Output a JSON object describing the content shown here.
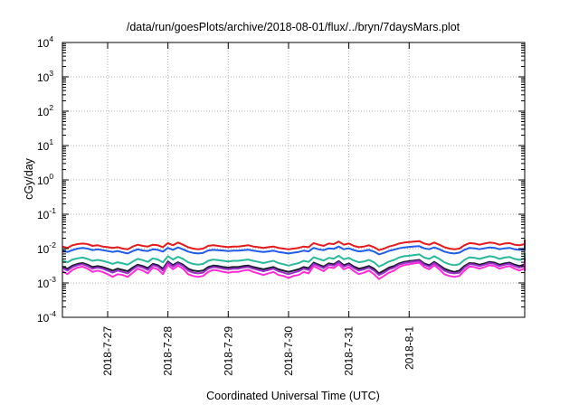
{
  "chart_data": {
    "type": "line",
    "title": "/data/run/goesPlots/archive/2018-08-01/flux/../bryn/7daysMars.plot",
    "xlabel": "Coordinated Universal Time (UTC)",
    "ylabel": "cGy/day",
    "yscale": "log",
    "ylim": [
      0.0001,
      10000
    ],
    "yticks": [
      {
        "base": "10",
        "exp": "-4"
      },
      {
        "base": "10",
        "exp": "-3"
      },
      {
        "base": "10",
        "exp": "-2"
      },
      {
        "base": "10",
        "exp": "-1"
      },
      {
        "base": "10",
        "exp": "0"
      },
      {
        "base": "10",
        "exp": "1"
      },
      {
        "base": "10",
        "exp": "2"
      },
      {
        "base": "10",
        "exp": "3"
      },
      {
        "base": "10",
        "exp": "4"
      }
    ],
    "xlim": [
      "2018-07-26 06:00",
      "2018-08-02 22:00"
    ],
    "xticks": [
      "2018-7-27",
      "2018-7-28",
      "2018-7-29",
      "2018-7-30",
      "2018-7-31",
      "2018-8-1"
    ],
    "grid": true,
    "legend": "none",
    "x_step_hours": 2,
    "series": [
      {
        "color": "#e41a1c",
        "values": [
          0.0115,
          0.0105,
          0.0125,
          0.0135,
          0.014,
          0.0135,
          0.012,
          0.0125,
          0.0115,
          0.011,
          0.0105,
          0.011,
          0.01,
          0.0095,
          0.0115,
          0.013,
          0.012,
          0.0115,
          0.013,
          0.0125,
          0.011,
          0.0145,
          0.0125,
          0.015,
          0.013,
          0.011,
          0.01,
          0.0095,
          0.01,
          0.012,
          0.0125,
          0.012,
          0.0115,
          0.011,
          0.0115,
          0.0115,
          0.012,
          0.0125,
          0.0115,
          0.011,
          0.0105,
          0.011,
          0.0115,
          0.0105,
          0.01,
          0.0095,
          0.01,
          0.0105,
          0.0115,
          0.011,
          0.0145,
          0.013,
          0.012,
          0.014,
          0.0135,
          0.016,
          0.013,
          0.014,
          0.012,
          0.011,
          0.0115,
          0.0125,
          0.011,
          0.009,
          0.01,
          0.0115,
          0.0125,
          0.014,
          0.015,
          0.0155,
          0.016,
          0.0165,
          0.014,
          0.013,
          0.015,
          0.013,
          0.011,
          0.01,
          0.0095,
          0.01,
          0.0125,
          0.0145,
          0.014,
          0.013,
          0.014,
          0.015,
          0.0145,
          0.013,
          0.014,
          0.0145,
          0.013,
          0.0125,
          0.0135,
          0.014,
          0.0135,
          0.013,
          0.0125,
          0.013,
          0.0145,
          0.0175,
          0.0165,
          0.017,
          0.0165,
          0.0155,
          0.014,
          0.015,
          0.017,
          0.016,
          0.0165,
          0.014,
          0.017,
          0.0165
        ]
      },
      {
        "color": "#1f5ce8",
        "values": [
          0.0085,
          0.008,
          0.009,
          0.01,
          0.0105,
          0.01,
          0.009,
          0.0095,
          0.009,
          0.0085,
          0.008,
          0.0085,
          0.0078,
          0.0072,
          0.0085,
          0.0095,
          0.0088,
          0.0085,
          0.0095,
          0.0092,
          0.0082,
          0.0105,
          0.0092,
          0.0108,
          0.0095,
          0.0082,
          0.0075,
          0.0072,
          0.0075,
          0.0088,
          0.0092,
          0.009,
          0.0088,
          0.0085,
          0.0087,
          0.0087,
          0.009,
          0.0093,
          0.0087,
          0.0083,
          0.008,
          0.0083,
          0.0087,
          0.008,
          0.0076,
          0.0072,
          0.0076,
          0.008,
          0.0087,
          0.0083,
          0.0105,
          0.0095,
          0.009,
          0.0102,
          0.0098,
          0.0115,
          0.0096,
          0.0102,
          0.009,
          0.0083,
          0.0086,
          0.0092,
          0.0082,
          0.0068,
          0.0075,
          0.0086,
          0.0093,
          0.0102,
          0.0108,
          0.0112,
          0.0116,
          0.0118,
          0.0102,
          0.0096,
          0.0108,
          0.0096,
          0.0082,
          0.0075,
          0.0072,
          0.0076,
          0.0092,
          0.0105,
          0.0102,
          0.0096,
          0.0102,
          0.0108,
          0.0105,
          0.0096,
          0.0102,
          0.0105,
          0.0096,
          0.0092,
          0.0099,
          0.0102,
          0.0099,
          0.0096,
          0.0092,
          0.0096,
          0.0105,
          0.0125,
          0.0118,
          0.0122,
          0.0118,
          0.0112,
          0.0102,
          0.0108,
          0.0122,
          0.0115,
          0.0118,
          0.0102,
          0.0122,
          0.0118
        ]
      },
      {
        "color": "#2ab89a",
        "values": [
          0.0045,
          0.004,
          0.0048,
          0.0052,
          0.0055,
          0.005,
          0.0044,
          0.0047,
          0.0044,
          0.004,
          0.0036,
          0.004,
          0.0037,
          0.0034,
          0.0042,
          0.005,
          0.0046,
          0.0041,
          0.0052,
          0.0048,
          0.004,
          0.006,
          0.0048,
          0.0058,
          0.005,
          0.004,
          0.0036,
          0.0034,
          0.0036,
          0.0044,
          0.0048,
          0.0046,
          0.0044,
          0.0042,
          0.0044,
          0.0044,
          0.0046,
          0.0048,
          0.0044,
          0.0041,
          0.0038,
          0.0041,
          0.0044,
          0.0038,
          0.0035,
          0.0032,
          0.0035,
          0.0038,
          0.0044,
          0.0041,
          0.0056,
          0.005,
          0.0045,
          0.0054,
          0.0051,
          0.0062,
          0.0049,
          0.0054,
          0.0045,
          0.004,
          0.0042,
          0.0047,
          0.004,
          0.003,
          0.0035,
          0.0042,
          0.0047,
          0.0055,
          0.006,
          0.0062,
          0.0065,
          0.0068,
          0.0055,
          0.005,
          0.006,
          0.005,
          0.004,
          0.0035,
          0.0033,
          0.0035,
          0.0047,
          0.0056,
          0.0054,
          0.005,
          0.0055,
          0.006,
          0.0057,
          0.005,
          0.0055,
          0.0057,
          0.005,
          0.0047,
          0.0052,
          0.0055,
          0.0052,
          0.005,
          0.0047,
          0.005,
          0.0057,
          0.0072,
          0.0066,
          0.007,
          0.0066,
          0.0062,
          0.0055,
          0.006,
          0.007,
          0.0064,
          0.0066,
          0.0055,
          0.007,
          0.0066
        ]
      },
      {
        "color": "#1a1a2e",
        "values": [
          0.003,
          0.0026,
          0.0032,
          0.0036,
          0.0038,
          0.0034,
          0.0029,
          0.0031,
          0.0029,
          0.0026,
          0.0023,
          0.0026,
          0.0024,
          0.0022,
          0.0028,
          0.0034,
          0.0031,
          0.0027,
          0.0036,
          0.0033,
          0.0026,
          0.0042,
          0.0033,
          0.004,
          0.0034,
          0.0026,
          0.0023,
          0.0022,
          0.0023,
          0.0029,
          0.0032,
          0.0031,
          0.0029,
          0.0028,
          0.0029,
          0.0029,
          0.0031,
          0.0032,
          0.0029,
          0.0027,
          0.0025,
          0.0027,
          0.0029,
          0.0025,
          0.0023,
          0.0021,
          0.0023,
          0.0025,
          0.0029,
          0.0027,
          0.0039,
          0.0034,
          0.003,
          0.0037,
          0.0035,
          0.0043,
          0.0033,
          0.0037,
          0.003,
          0.0026,
          0.0028,
          0.0031,
          0.0026,
          0.0019,
          0.0023,
          0.0028,
          0.0031,
          0.0037,
          0.0041,
          0.0043,
          0.0045,
          0.0047,
          0.0037,
          0.0033,
          0.0041,
          0.0033,
          0.0026,
          0.0023,
          0.0021,
          0.0023,
          0.0031,
          0.0038,
          0.0037,
          0.0034,
          0.0037,
          0.0041,
          0.0039,
          0.0034,
          0.0037,
          0.0039,
          0.0034,
          0.0031,
          0.0035,
          0.0037,
          0.0035,
          0.0034,
          0.0031,
          0.0034,
          0.0039,
          0.005,
          0.0045,
          0.0048,
          0.0045,
          0.0042,
          0.0037,
          0.0041,
          0.0048,
          0.0044,
          0.0045,
          0.0037,
          0.0048,
          0.0045
        ]
      },
      {
        "color": "#9a2fc9",
        "values": [
          0.0027,
          0.0023,
          0.0029,
          0.0033,
          0.0035,
          0.0031,
          0.0026,
          0.0028,
          0.0026,
          0.0023,
          0.002,
          0.0023,
          0.0021,
          0.0019,
          0.0025,
          0.0031,
          0.0028,
          0.0024,
          0.0033,
          0.003,
          0.0023,
          0.0039,
          0.003,
          0.0037,
          0.0031,
          0.0023,
          0.002,
          0.0019,
          0.002,
          0.0026,
          0.0029,
          0.0028,
          0.0026,
          0.0025,
          0.0026,
          0.0026,
          0.0028,
          0.0029,
          0.0026,
          0.0024,
          0.0022,
          0.0024,
          0.0026,
          0.0022,
          0.002,
          0.0018,
          0.002,
          0.0022,
          0.0026,
          0.0024,
          0.0036,
          0.0031,
          0.0027,
          0.0034,
          0.0032,
          0.004,
          0.003,
          0.0034,
          0.0027,
          0.0023,
          0.0025,
          0.0028,
          0.0023,
          0.0017,
          0.002,
          0.0025,
          0.0028,
          0.0034,
          0.0038,
          0.004,
          0.0042,
          0.0044,
          0.0034,
          0.003,
          0.0038,
          0.003,
          0.0023,
          0.002,
          0.0019,
          0.002,
          0.0028,
          0.0035,
          0.0034,
          0.0031,
          0.0034,
          0.0038,
          0.0036,
          0.0031,
          0.0034,
          0.0036,
          0.0031,
          0.0028,
          0.0032,
          0.0034,
          0.0032,
          0.0031,
          0.0028,
          0.0031,
          0.0036,
          0.0046,
          0.0042,
          0.0045,
          0.0042,
          0.0039,
          0.0034,
          0.0038,
          0.0045,
          0.0041,
          0.0042,
          0.0034,
          0.0045,
          0.0042
        ]
      },
      {
        "color": "#ff2bd6",
        "values": [
          0.0022,
          0.0018,
          0.0024,
          0.0028,
          0.003,
          0.0026,
          0.0021,
          0.0023,
          0.0021,
          0.0018,
          0.0015,
          0.0018,
          0.0017,
          0.0015,
          0.002,
          0.0026,
          0.0023,
          0.0019,
          0.0028,
          0.0025,
          0.0018,
          0.0034,
          0.0025,
          0.0032,
          0.0026,
          0.0018,
          0.0016,
          0.0015,
          0.0016,
          0.0021,
          0.0024,
          0.0023,
          0.0021,
          0.002,
          0.0021,
          0.0021,
          0.0023,
          0.0024,
          0.0021,
          0.0019,
          0.0017,
          0.0019,
          0.0021,
          0.0017,
          0.0016,
          0.0014,
          0.0016,
          0.0017,
          0.0021,
          0.0019,
          0.0031,
          0.0026,
          0.0022,
          0.0029,
          0.0027,
          0.0035,
          0.0025,
          0.0029,
          0.0022,
          0.0018,
          0.002,
          0.0023,
          0.0018,
          0.0013,
          0.0016,
          0.002,
          0.0023,
          0.0029,
          0.0033,
          0.0035,
          0.0037,
          0.0039,
          0.0029,
          0.0025,
          0.0033,
          0.0025,
          0.0018,
          0.0016,
          0.0015,
          0.0016,
          0.0023,
          0.003,
          0.0029,
          0.0026,
          0.0029,
          0.0033,
          0.0031,
          0.0026,
          0.0029,
          0.0031,
          0.0026,
          0.0023,
          0.0027,
          0.0029,
          0.0027,
          0.0026,
          0.0023,
          0.0026,
          0.0031,
          0.0041,
          0.0037,
          0.004,
          0.0037,
          0.0034,
          0.0029,
          0.0033,
          0.004,
          0.0036,
          0.0037,
          0.0029,
          0.004,
          0.0037
        ]
      }
    ]
  }
}
